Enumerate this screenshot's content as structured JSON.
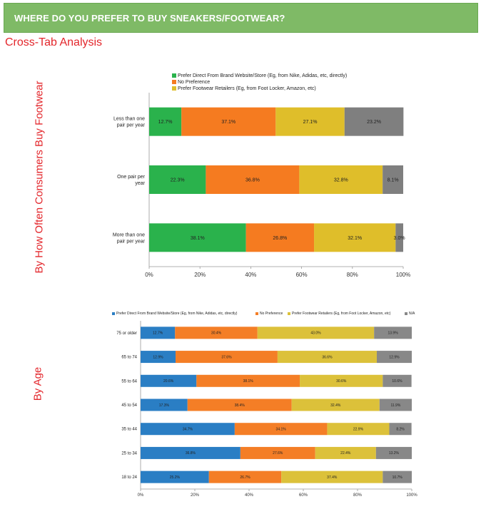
{
  "header": {
    "title": "WHERE DO YOU PREFER TO BUY SNEAKERS/FOOTWEAR?"
  },
  "section": {
    "title": "Cross-Tab Analysis"
  },
  "side_labels": {
    "frequency": "By How Often Consumers Buy Footwear",
    "age": "By Age"
  },
  "chart_data": [
    {
      "type": "bar",
      "orientation": "horizontal",
      "stacked": "percent",
      "categories": [
        "Less than one pair per year",
        "One pair per year",
        "More than one pair per year"
      ],
      "category_lines": [
        [
          "Less than one",
          "pair per year"
        ],
        [
          "One pair per",
          "year"
        ],
        [
          "More than one",
          "pair per year"
        ]
      ],
      "series": [
        {
          "name": "Prefer Direct From Brand Website/Store (Eg, from Nike, Adidas, etc, directly)",
          "color": "#2ab24c",
          "values": [
            12.7,
            22.3,
            38.1
          ],
          "labels": [
            "12.7%",
            "22.3%",
            "38.1%"
          ]
        },
        {
          "name": "No Preference",
          "color": "#f57b20",
          "values": [
            37.1,
            36.8,
            26.8
          ],
          "labels": [
            "37.1%",
            "36.8%",
            "26.8%"
          ]
        },
        {
          "name": "Prefer Footwear Retailers (Eg, from Foot Locker, Amazon, etc)",
          "color": "#dfbe2a",
          "values": [
            27.1,
            32.8,
            32.1
          ],
          "labels": [
            "27.1%",
            "32.8%",
            "32.1%"
          ]
        },
        {
          "name": "",
          "color": "#7f7f7f",
          "values": [
            23.2,
            8.1,
            3.0
          ],
          "labels": [
            "23.2%",
            "8.1%",
            "3.0%"
          ]
        }
      ],
      "xlim": [
        0,
        100
      ],
      "x_ticks": [
        "0%",
        "20%",
        "40%",
        "60%",
        "80%",
        "100%"
      ],
      "legend": "top-left",
      "grid": false
    },
    {
      "type": "bar",
      "orientation": "horizontal",
      "stacked": "percent",
      "categories": [
        "75 or older",
        "65 to 74",
        "55 to 64",
        "45 to 54",
        "35 to 44",
        "25 to 34",
        "18 to 24"
      ],
      "series": [
        {
          "name": "Prefer Direct From Brand Website/Store (Eg, from Nike, Adidas, etc, directly)",
          "color": "#2a7ec4",
          "values": [
            12.7,
            12.9,
            20.6,
            17.3,
            34.7,
            36.8,
            25.2
          ],
          "labels": [
            "12.7%",
            "12.9%",
            "20.6%",
            "17.3%",
            "34.7%",
            "36.8%",
            "25.2%"
          ]
        },
        {
          "name": "No Preference",
          "color": "#f47e26",
          "values": [
            30.4,
            37.6,
            38.1,
            38.4,
            34.1,
            27.6,
            26.7
          ],
          "labels": [
            "30.4%",
            "37.6%",
            "38.1%",
            "38.4%",
            "34.1%",
            "27.6%",
            "26.7%"
          ]
        },
        {
          "name": "Prefer Footwear Retailers (Eg, from Foot Locker, Amazon, etc)",
          "color": "#dcc13a",
          "values": [
            43.0,
            36.6,
            30.6,
            32.4,
            22.9,
            22.4,
            37.4
          ],
          "labels": [
            "43.0%",
            "36.6%",
            "30.6%",
            "32.4%",
            "22.9%",
            "22.4%",
            "37.4%"
          ]
        },
        {
          "name": "N/A",
          "color": "#888888",
          "values": [
            13.9,
            12.9,
            10.6,
            11.9,
            8.2,
            13.2,
            10.7
          ],
          "labels": [
            "13.9%",
            "12.9%",
            "10.6%",
            "11.9%",
            "8.2%",
            "13.2%",
            "10.7%"
          ]
        }
      ],
      "xlim": [
        0,
        100
      ],
      "x_ticks": [
        "0%",
        "20%",
        "40%",
        "60%",
        "80%",
        "100%"
      ],
      "legend": "top",
      "grid": false
    }
  ]
}
